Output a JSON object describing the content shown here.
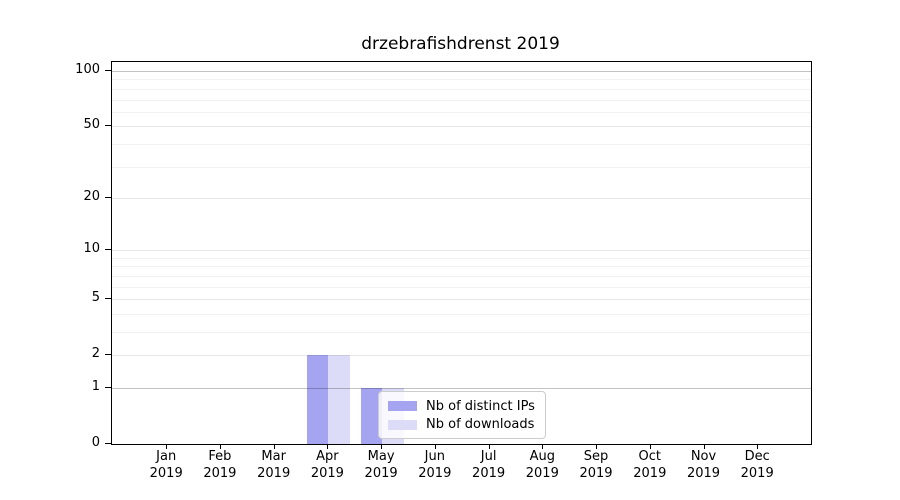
{
  "chart_data": {
    "type": "bar",
    "title": "drzebrafishdrenst 2019",
    "categories": [
      "Jan",
      "Feb",
      "Mar",
      "Apr",
      "May",
      "Jun",
      "Jul",
      "Aug",
      "Sep",
      "Oct",
      "Nov",
      "Dec"
    ],
    "year_label": "2019",
    "series": [
      {
        "name": "Nb of distinct IPs",
        "color": "#a4a4f0",
        "values": [
          0,
          0,
          0,
          2,
          1,
          0,
          0,
          0,
          0,
          0,
          0,
          0
        ]
      },
      {
        "name": "Nb of downloads",
        "color": "#dcdcf8",
        "values": [
          0,
          0,
          0,
          2,
          1,
          0,
          0,
          0,
          0,
          0,
          0,
          0
        ]
      }
    ],
    "yscale": "log1p",
    "ylim": [
      0,
      112
    ],
    "ytick_values": [
      0,
      1,
      2,
      5,
      10,
      20,
      50,
      100
    ],
    "ytick_labels": [
      "0",
      "1",
      "2",
      "5",
      "10",
      "20",
      "50",
      "100"
    ],
    "grid": true,
    "legend_position": "lower-center"
  }
}
